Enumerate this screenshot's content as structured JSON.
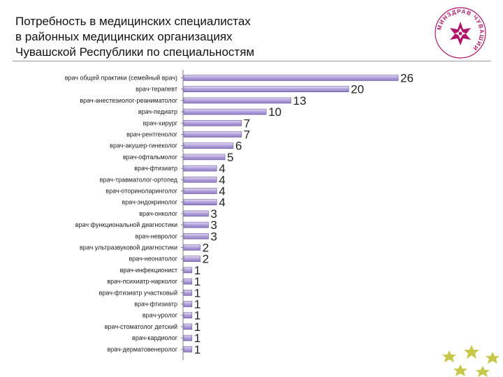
{
  "slide": {
    "title_lines": [
      "Потребность в медицинских специалистах",
      "в районных медицинских организациях",
      "Чувашской Республики по специальностям"
    ],
    "logo_text": "МИНЗДРАВ ЧУВАШИИ",
    "colors": {
      "bar_light": "#e4dcf3",
      "bar_dark": "#8f79c2",
      "bar_edge": "#6b58a3",
      "rule": "#9b9b9b",
      "logo": "#b0156a",
      "star": "#c7c84a"
    }
  },
  "chart_data": {
    "type": "bar",
    "orientation": "horizontal",
    "categories": [
      "врач общей практики (семейный врач)",
      "врач-терапевт",
      "врач-анестезиолог-реаниматолог",
      "врач-педиатр",
      "врач-хирург",
      "врач-рентгенолог",
      "врач-акушер-гинеколог",
      "врач-офтальмолог",
      "врач-фтизиатр",
      "врач-травматолог-ортопед",
      "врач-оториноларинголог",
      "врач-эндокринолог",
      "врач-онколог",
      "врач функциональной диагностики",
      "врач-невролог",
      "врач ультразвуковой диагностики",
      "врач-неонатолог",
      "врач-инфекционист",
      "врач-психиатр-нарколог",
      "врач-фтизиатр участковый",
      "врач-фтизиатр",
      "врач-уролог",
      "врач-стоматолог детский",
      "врач-кардиолог",
      "врач-дерматовенеролог"
    ],
    "values": [
      26,
      20,
      13,
      10,
      7,
      7,
      6,
      5,
      4,
      4,
      4,
      4,
      3,
      3,
      3,
      2,
      2,
      1,
      1,
      1,
      1,
      1,
      1,
      1,
      1
    ],
    "data_labels": true,
    "xlim": [
      0,
      26
    ],
    "grid": false,
    "legend": "none"
  }
}
